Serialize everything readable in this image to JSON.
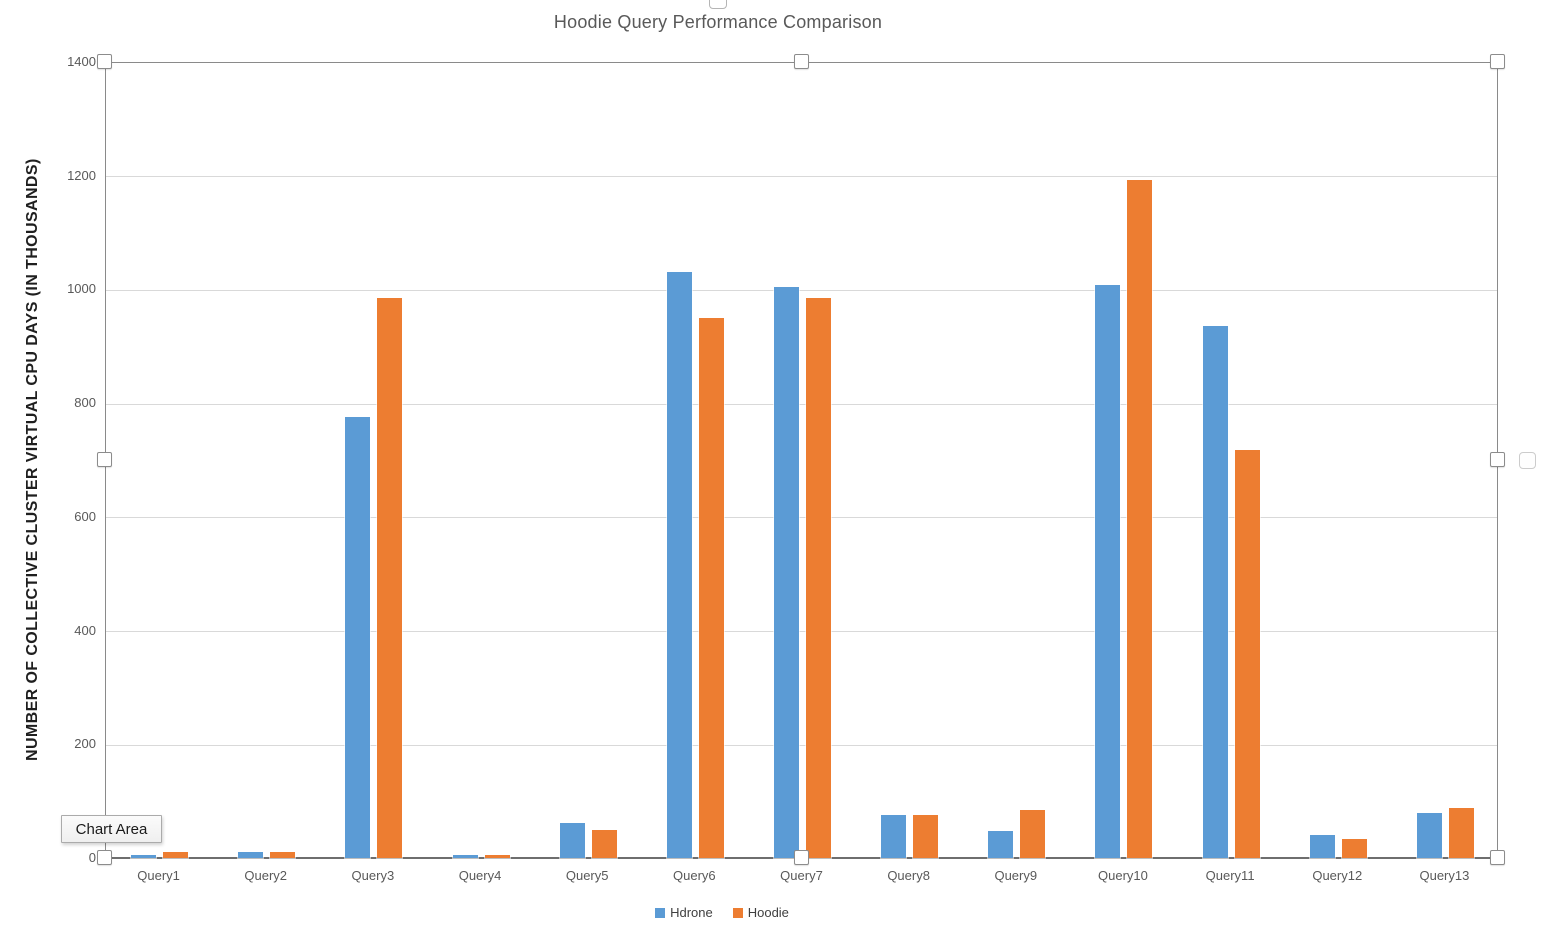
{
  "chart_data": {
    "type": "bar",
    "title": "Hoodie Query Performance Comparison",
    "xlabel": "",
    "ylabel": "NUMBER OF COLLECTIVE CLUSTER VIRTUAL CPU DAYS (IN THOUSANDS)",
    "categories": [
      "Query1",
      "Query2",
      "Query3",
      "Query4",
      "Query5",
      "Query6",
      "Query7",
      "Query8",
      "Query9",
      "Query10",
      "Query11",
      "Query12",
      "Query13"
    ],
    "series": [
      {
        "name": "Hdrone",
        "color": "#5B9BD5",
        "values": [
          5,
          10,
          775,
          5,
          62,
          1030,
          1005,
          75,
          48,
          1008,
          935,
          40,
          80
        ]
      },
      {
        "name": "Hoodie",
        "color": "#ED7D31",
        "values": [
          10,
          10,
          985,
          5,
          50,
          950,
          985,
          75,
          85,
          1193,
          718,
          33,
          88
        ]
      }
    ],
    "ylim": [
      0,
      1400
    ],
    "yticks": [
      0,
      200,
      400,
      600,
      800,
      1000,
      1200,
      1400
    ],
    "grid": true,
    "legend_position": "bottom"
  },
  "selection": {
    "tooltip_label": "Chart Area"
  },
  "colors": {
    "hdrone": "#5B9BD5",
    "hoodie": "#ED7D31",
    "gridline": "#d9d9d9",
    "axis_line": "#6e6e6e",
    "frame_line": "#8a8a8a",
    "title_text": "#595959",
    "tick_text": "#595959"
  }
}
